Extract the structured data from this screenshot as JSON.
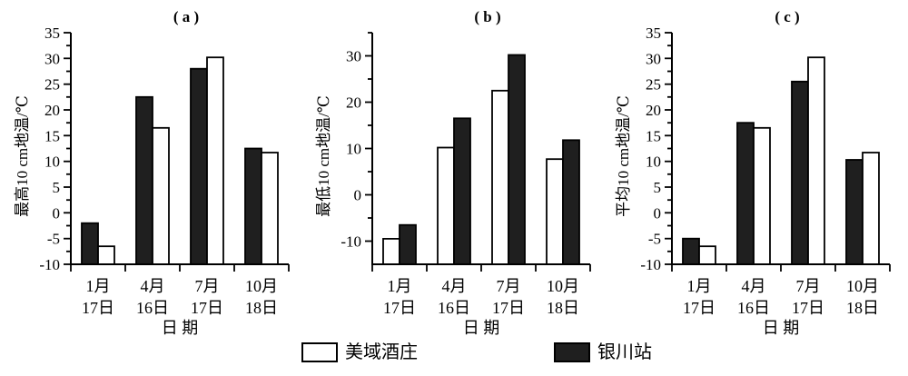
{
  "figure": {
    "background": "#ffffff",
    "ink": "#000000",
    "bar_dark": "#1f1f1f",
    "bar_light": "#ffffff"
  },
  "legend": {
    "items": [
      {
        "key": "meiyu",
        "label": "美域酒庄",
        "fill": "#ffffff"
      },
      {
        "key": "yinchuan",
        "label": "银川站",
        "fill": "#1f1f1f"
      }
    ]
  },
  "chart_data": [
    {
      "type": "bar",
      "key": "a",
      "title": "( a )",
      "ylabel": "最高10 cm地温/℃",
      "xlabel": "日 期",
      "categories": [
        [
          "1月",
          "17日"
        ],
        [
          "4月",
          "16日"
        ],
        [
          "7月",
          "17日"
        ],
        [
          "10月",
          "18日"
        ]
      ],
      "ylim": [
        -10,
        35
      ],
      "grid": false,
      "yticks": [
        [
          -10,
          "-10"
        ],
        [
          -7.5,
          ""
        ],
        [
          -5,
          "-5"
        ],
        [
          -2.5,
          ""
        ],
        [
          0,
          "0"
        ],
        [
          2.5,
          ""
        ],
        [
          5,
          "5"
        ],
        [
          7.5,
          ""
        ],
        [
          10,
          "10"
        ],
        [
          12.5,
          ""
        ],
        [
          15,
          "15"
        ],
        [
          17.5,
          ""
        ],
        [
          20,
          "20"
        ],
        [
          22.5,
          ""
        ],
        [
          25,
          "25"
        ],
        [
          27.5,
          ""
        ],
        [
          30,
          "30"
        ],
        [
          32.5,
          ""
        ],
        [
          35,
          "35"
        ]
      ],
      "series": [
        {
          "key": "yinchuan",
          "name": "银川站",
          "fill": "#1f1f1f",
          "values": [
            -2,
            22.5,
            28,
            12.5
          ]
        },
        {
          "key": "meiyu",
          "name": "美域酒庄",
          "fill": "#ffffff",
          "values": [
            -6.5,
            16.5,
            30.2,
            11.7
          ]
        }
      ]
    },
    {
      "type": "bar",
      "key": "b",
      "title": "( b )",
      "ylabel": "最低10 cm地温/℃",
      "xlabel": "日 期",
      "categories": [
        [
          "1月",
          "17日"
        ],
        [
          "4月",
          "16日"
        ],
        [
          "7月",
          "17日"
        ],
        [
          "10月",
          "18日"
        ]
      ],
      "ylim": [
        -15,
        35
      ],
      "grid": false,
      "yticks": [
        [
          -10,
          "-10"
        ],
        [
          -5,
          ""
        ],
        [
          0,
          "0"
        ],
        [
          5,
          ""
        ],
        [
          10,
          "10"
        ],
        [
          15,
          ""
        ],
        [
          20,
          "20"
        ],
        [
          25,
          ""
        ],
        [
          30,
          "30"
        ],
        [
          35,
          ""
        ]
      ],
      "series": [
        {
          "key": "meiyu",
          "name": "美域酒庄",
          "fill": "#ffffff",
          "values": [
            -9.5,
            10.2,
            22.5,
            7.7
          ]
        },
        {
          "key": "yinchuan",
          "name": "银川站",
          "fill": "#1f1f1f",
          "values": [
            -6.5,
            16.5,
            30.2,
            11.8
          ]
        }
      ]
    },
    {
      "type": "bar",
      "key": "c",
      "title": "( c )",
      "ylabel": "平均10 cm地温/℃",
      "xlabel": "日 期",
      "categories": [
        [
          "1月",
          "17日"
        ],
        [
          "4月",
          "16日"
        ],
        [
          "7月",
          "17日"
        ],
        [
          "10月",
          "18日"
        ]
      ],
      "ylim": [
        -10,
        35
      ],
      "grid": false,
      "yticks": [
        [
          -10,
          "-10"
        ],
        [
          -7.5,
          ""
        ],
        [
          -5,
          "-5"
        ],
        [
          -2.5,
          ""
        ],
        [
          0,
          "0"
        ],
        [
          2.5,
          ""
        ],
        [
          5,
          "5"
        ],
        [
          7.5,
          ""
        ],
        [
          10,
          "10"
        ],
        [
          12.5,
          ""
        ],
        [
          15,
          "15"
        ],
        [
          17.5,
          ""
        ],
        [
          20,
          "20"
        ],
        [
          22.5,
          ""
        ],
        [
          25,
          "25"
        ],
        [
          27.5,
          ""
        ],
        [
          30,
          "30"
        ],
        [
          32.5,
          ""
        ],
        [
          35,
          "35"
        ]
      ],
      "series": [
        {
          "key": "yinchuan",
          "name": "银川站",
          "fill": "#1f1f1f",
          "values": [
            -5,
            17.5,
            25.5,
            10.3
          ]
        },
        {
          "key": "meiyu",
          "name": "美域酒庄",
          "fill": "#ffffff",
          "values": [
            -6.5,
            16.5,
            30.2,
            11.7
          ]
        }
      ]
    }
  ]
}
